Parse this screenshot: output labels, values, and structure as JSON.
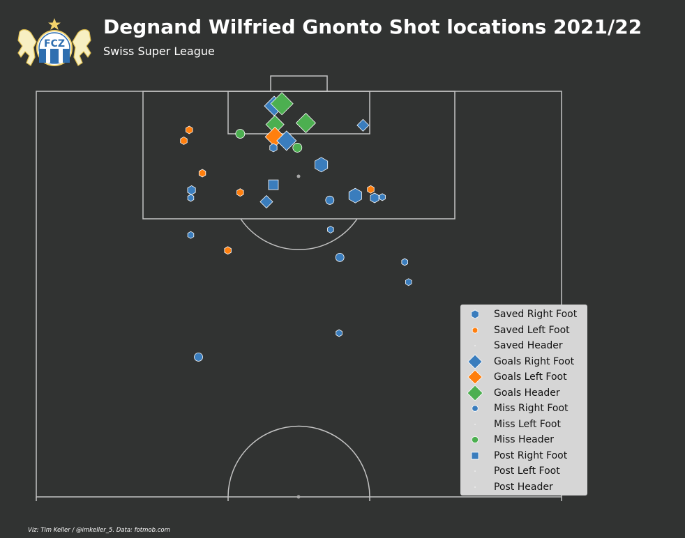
{
  "header": {
    "title": "Degnand Wilfried Gnonto Shot locations 2021/22",
    "subtitle": "Swiss Super League",
    "credit": "Viz: Tim Keller / @imkeller_5. Data: fotmob.com",
    "logo_text": "FCZ"
  },
  "colors": {
    "background": "#313332",
    "lines": "#c4c4c4",
    "right_foot": "#3a7dbd",
    "left_foot": "#ff7f0e",
    "header": "#4caf50",
    "legend_bg": "#d6d6d6"
  },
  "chart_data": {
    "type": "scatter",
    "coordinate_system": "distance from goal line and from left touchline, in metres; pitch 68 m wide, half-pitch shown",
    "pitch": {
      "width": 68,
      "length_shown": 52.5
    },
    "legend_placement": "bottom-right",
    "legend": [
      {
        "label": "Saved Right Foot",
        "shape": "hexagon",
        "color": "#3a7dbd",
        "size": 17
      },
      {
        "label": "Saved Left Foot",
        "shape": "hexagon",
        "color": "#ff7f0e",
        "size": 12
      },
      {
        "label": "Saved Header",
        "shape": "point",
        "color": "#ffffff",
        "size": 1.5
      },
      {
        "label": "Goals Right Foot",
        "shape": "diamond",
        "color": "#3a7dbd",
        "size": 28
      },
      {
        "label": "Goals Left Foot",
        "shape": "diamond",
        "color": "#ff7f0e",
        "size": 28
      },
      {
        "label": "Goals Header",
        "shape": "diamond",
        "color": "#4caf50",
        "size": 32
      },
      {
        "label": "Miss Right Foot",
        "shape": "circle",
        "color": "#3a7dbd",
        "size": 12
      },
      {
        "label": "Miss Left Foot",
        "shape": "point",
        "color": "#ffffff",
        "size": 1.5
      },
      {
        "label": "Miss Header",
        "shape": "circle",
        "color": "#4caf50",
        "size": 13
      },
      {
        "label": "Post Right Foot",
        "shape": "square",
        "color": "#3a7dbd",
        "size": 14
      },
      {
        "label": "Post Left Foot",
        "shape": "point",
        "color": "#ffffff",
        "size": 1.5
      },
      {
        "label": "Post Header",
        "shape": "point",
        "color": "#ffffff",
        "size": 1.5
      }
    ],
    "shots": [
      {
        "outcome": "Goals",
        "body_part": "Right Foot",
        "x": 30.8,
        "y": 1.9,
        "size": 28
      },
      {
        "outcome": "Goals",
        "body_part": "Header",
        "x": 31.8,
        "y": 1.6,
        "size": 32
      },
      {
        "outcome": "Goals",
        "body_part": "Header",
        "x": 30.9,
        "y": 4.3,
        "size": 26
      },
      {
        "outcome": "Goals",
        "body_part": "Header",
        "x": 34.9,
        "y": 4.1,
        "size": 28
      },
      {
        "outcome": "Goals",
        "body_part": "Left Foot",
        "x": 30.9,
        "y": 5.9,
        "size": 28
      },
      {
        "outcome": "Goals",
        "body_part": "Right Foot",
        "x": 32.4,
        "y": 6.4,
        "size": 28
      },
      {
        "outcome": "Goals",
        "body_part": "Right Foot",
        "x": 42.3,
        "y": 4.4,
        "size": 17
      },
      {
        "outcome": "Saved",
        "body_part": "Right Foot",
        "x": 30.7,
        "y": 7.3,
        "size": 12
      },
      {
        "outcome": "Miss",
        "body_part": "Header",
        "x": 26.4,
        "y": 5.5,
        "size": 13
      },
      {
        "outcome": "Miss",
        "body_part": "Header",
        "x": 33.8,
        "y": 7.3,
        "size": 13
      },
      {
        "outcome": "Saved",
        "body_part": "Left Foot",
        "x": 19.8,
        "y": 5.0,
        "size": 11
      },
      {
        "outcome": "Saved",
        "body_part": "Left Foot",
        "x": 19.1,
        "y": 6.4,
        "size": 11
      },
      {
        "outcome": "Saved",
        "body_part": "Left Foot",
        "x": 21.5,
        "y": 10.6,
        "size": 11
      },
      {
        "outcome": "Saved",
        "body_part": "Right Foot",
        "x": 36.9,
        "y": 9.5,
        "size": 21
      },
      {
        "outcome": "Saved",
        "body_part": "Right Foot",
        "x": 20.1,
        "y": 12.8,
        "size": 13
      },
      {
        "outcome": "Saved",
        "body_part": "Right Foot",
        "x": 20.0,
        "y": 13.8,
        "size": 10
      },
      {
        "outcome": "Saved",
        "body_part": "Left Foot",
        "x": 26.4,
        "y": 13.1,
        "size": 11
      },
      {
        "outcome": "Post",
        "body_part": "Right Foot",
        "x": 30.7,
        "y": 12.1,
        "size": 14
      },
      {
        "outcome": "Goals",
        "body_part": "Right Foot",
        "x": 29.8,
        "y": 14.3,
        "size": 18
      },
      {
        "outcome": "Miss",
        "body_part": "Right Foot",
        "x": 38.0,
        "y": 14.1,
        "size": 12
      },
      {
        "outcome": "Saved",
        "body_part": "Right Foot",
        "x": 41.3,
        "y": 13.5,
        "size": 21
      },
      {
        "outcome": "Saved",
        "body_part": "Left Foot",
        "x": 43.3,
        "y": 12.7,
        "size": 11
      },
      {
        "outcome": "Saved",
        "body_part": "Right Foot",
        "x": 43.8,
        "y": 13.8,
        "size": 14
      },
      {
        "outcome": "Saved",
        "body_part": "Right Foot",
        "x": 44.8,
        "y": 13.7,
        "size": 10
      },
      {
        "outcome": "Saved",
        "body_part": "Right Foot",
        "x": 38.1,
        "y": 17.9,
        "size": 10
      },
      {
        "outcome": "Saved",
        "body_part": "Right Foot",
        "x": 20.0,
        "y": 18.6,
        "size": 10
      },
      {
        "outcome": "Saved",
        "body_part": "Left Foot",
        "x": 24.8,
        "y": 20.6,
        "size": 11
      },
      {
        "outcome": "Miss",
        "body_part": "Right Foot",
        "x": 39.3,
        "y": 21.5,
        "size": 12
      },
      {
        "outcome": "Saved",
        "body_part": "Right Foot",
        "x": 47.7,
        "y": 22.1,
        "size": 10
      },
      {
        "outcome": "Saved",
        "body_part": "Right Foot",
        "x": 48.2,
        "y": 24.7,
        "size": 10
      },
      {
        "outcome": "Saved",
        "body_part": "Right Foot",
        "x": 39.2,
        "y": 31.3,
        "size": 10
      },
      {
        "outcome": "Miss",
        "body_part": "Right Foot",
        "x": 21.0,
        "y": 34.4,
        "size": 12
      }
    ]
  }
}
